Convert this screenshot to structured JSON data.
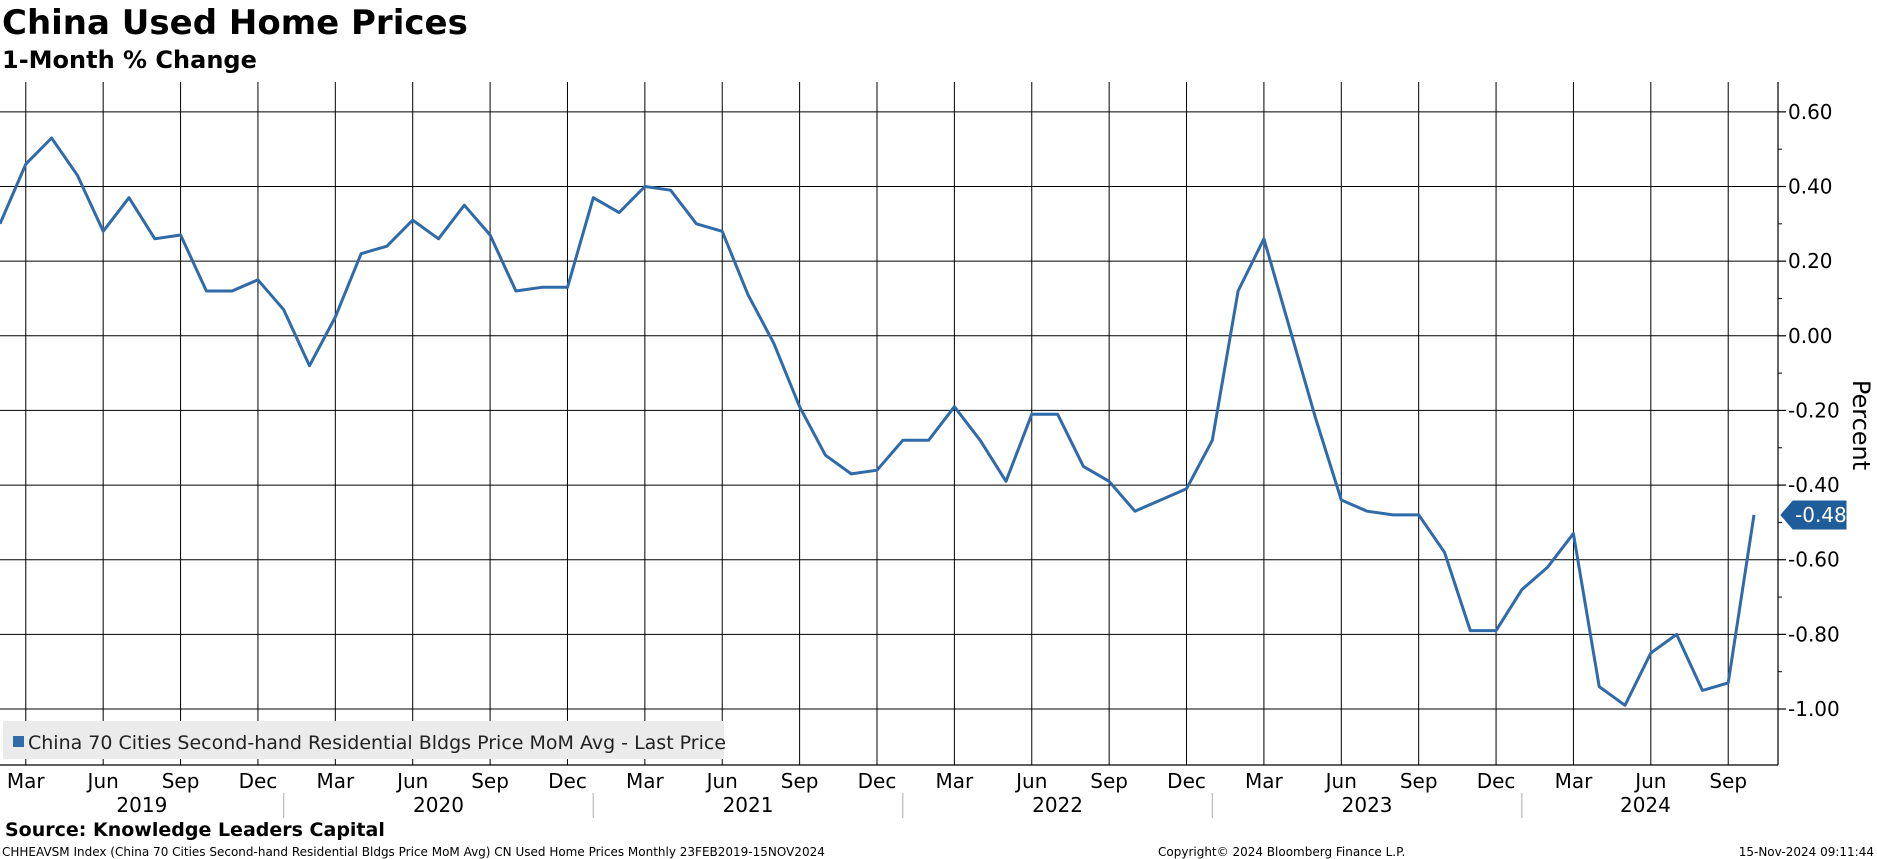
{
  "chart_data": {
    "type": "line",
    "title": "China Used Home Prices",
    "subtitle": "1-Month % Change",
    "ylabel": "Percent",
    "ylim": [
      -1.15,
      0.68
    ],
    "yticks": [
      0.6,
      0.4,
      0.2,
      0.0,
      -0.2,
      -0.4,
      -0.6,
      -0.8,
      -1.0
    ],
    "ytick_labels": [
      "0.60",
      "0.40",
      "0.20",
      "0.00",
      "-0.20",
      "-0.40",
      "-0.60",
      "-0.80",
      "-1.00"
    ],
    "x_start": "2019-02",
    "x_end": "2024-10",
    "x_month_labels": [
      {
        "date": "2019-03",
        "label": "Mar"
      },
      {
        "date": "2019-06",
        "label": "Jun"
      },
      {
        "date": "2019-09",
        "label": "Sep"
      },
      {
        "date": "2019-12",
        "label": "Dec"
      },
      {
        "date": "2020-03",
        "label": "Mar"
      },
      {
        "date": "2020-06",
        "label": "Jun"
      },
      {
        "date": "2020-09",
        "label": "Sep"
      },
      {
        "date": "2020-12",
        "label": "Dec"
      },
      {
        "date": "2021-03",
        "label": "Mar"
      },
      {
        "date": "2021-06",
        "label": "Jun"
      },
      {
        "date": "2021-09",
        "label": "Sep"
      },
      {
        "date": "2021-12",
        "label": "Dec"
      },
      {
        "date": "2022-03",
        "label": "Mar"
      },
      {
        "date": "2022-06",
        "label": "Jun"
      },
      {
        "date": "2022-09",
        "label": "Sep"
      },
      {
        "date": "2022-12",
        "label": "Dec"
      },
      {
        "date": "2023-03",
        "label": "Mar"
      },
      {
        "date": "2023-06",
        "label": "Jun"
      },
      {
        "date": "2023-09",
        "label": "Sep"
      },
      {
        "date": "2023-12",
        "label": "Dec"
      },
      {
        "date": "2024-03",
        "label": "Mar"
      },
      {
        "date": "2024-06",
        "label": "Jun"
      },
      {
        "date": "2024-09",
        "label": "Sep"
      }
    ],
    "x_year_labels": [
      "2019",
      "2020",
      "2021",
      "2022",
      "2023",
      "2024"
    ],
    "series": [
      {
        "name": "China 70 Cities Second-hand Residential Bldgs Price MoM Avg - Last Price",
        "color": "#2f6aa9",
        "x": [
          "2019-02",
          "2019-03",
          "2019-04",
          "2019-05",
          "2019-06",
          "2019-07",
          "2019-08",
          "2019-09",
          "2019-10",
          "2019-11",
          "2019-12",
          "2020-01",
          "2020-02",
          "2020-03",
          "2020-04",
          "2020-05",
          "2020-06",
          "2020-07",
          "2020-08",
          "2020-09",
          "2020-10",
          "2020-11",
          "2020-12",
          "2021-01",
          "2021-02",
          "2021-03",
          "2021-04",
          "2021-05",
          "2021-06",
          "2021-07",
          "2021-08",
          "2021-09",
          "2021-10",
          "2021-11",
          "2021-12",
          "2022-01",
          "2022-02",
          "2022-03",
          "2022-04",
          "2022-05",
          "2022-06",
          "2022-07",
          "2022-08",
          "2022-09",
          "2022-10",
          "2022-11",
          "2022-12",
          "2023-01",
          "2023-02",
          "2023-03",
          "2023-04",
          "2023-05",
          "2023-06",
          "2023-07",
          "2023-08",
          "2023-09",
          "2023-10",
          "2023-11",
          "2023-12",
          "2024-01",
          "2024-02",
          "2024-03",
          "2024-04",
          "2024-05",
          "2024-06",
          "2024-07",
          "2024-08",
          "2024-09",
          "2024-10"
        ],
        "values": [
          0.3,
          0.46,
          0.53,
          0.43,
          0.28,
          0.37,
          0.26,
          0.27,
          0.12,
          0.12,
          0.15,
          0.07,
          -0.08,
          0.05,
          0.22,
          0.24,
          0.31,
          0.26,
          0.35,
          0.27,
          0.12,
          0.13,
          0.13,
          0.37,
          0.33,
          0.4,
          0.39,
          0.3,
          0.28,
          0.11,
          -0.02,
          -0.19,
          -0.32,
          -0.37,
          -0.36,
          -0.28,
          -0.28,
          -0.19,
          -0.28,
          -0.39,
          -0.21,
          -0.21,
          -0.35,
          -0.39,
          -0.47,
          -0.44,
          -0.41,
          -0.28,
          0.12,
          0.26,
          0.02,
          -0.22,
          -0.44,
          -0.47,
          -0.48,
          -0.48,
          -0.58,
          -0.79,
          -0.79,
          -0.68,
          -0.62,
          -0.53,
          -0.94,
          -0.99,
          -0.85,
          -0.8,
          -0.95,
          -0.93,
          -0.48
        ]
      }
    ],
    "last_value_label": "-0.48",
    "legend": {
      "text": "China 70 Cities Second-hand Residential Bldgs Price MoM Avg - Last Price",
      "position": "bottom-left"
    },
    "grid": true
  },
  "footer": {
    "source": "Source: Knowledge Leaders Capital",
    "ticker_info": "CHHEAVSM Index (China 70 Cities  Second-hand Residential Bldgs Price MoM Avg) CN Used Home Prices  Monthly 23FEB2019-15NOV2024",
    "copyright": "Copyright© 2024 Bloomberg Finance L.P.",
    "timestamp": "15-Nov-2024 09:11:44"
  }
}
